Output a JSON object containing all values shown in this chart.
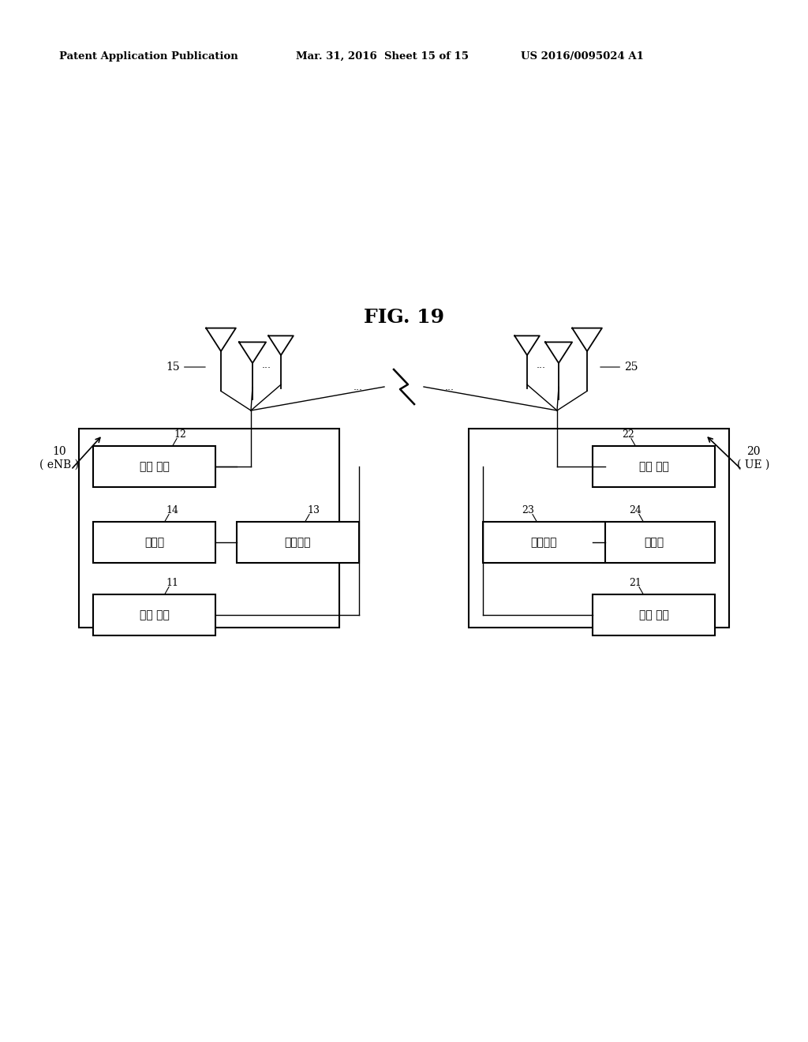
{
  "header_left": "Patent Application Publication",
  "header_mid": "Mar. 31, 2016  Sheet 15 of 15",
  "header_right": "US 2016/0095024 A1",
  "bg_color": "#ffffff",
  "fig_title": "FIG. 19",
  "enb_label": "10\n( eNB )",
  "ue_label": "20\n( UE )",
  "label_15": "15",
  "label_25": "25",
  "left_labels": [
    "전송 장치",
    "메모리",
    "프로세서",
    "수신 장치"
  ],
  "left_nums": [
    "12",
    "14",
    "13",
    "11"
  ],
  "right_labels": [
    "전송 장치",
    "메모리",
    "프로세서",
    "수신 장치"
  ],
  "right_nums": [
    "22",
    "24",
    "23",
    "21"
  ]
}
